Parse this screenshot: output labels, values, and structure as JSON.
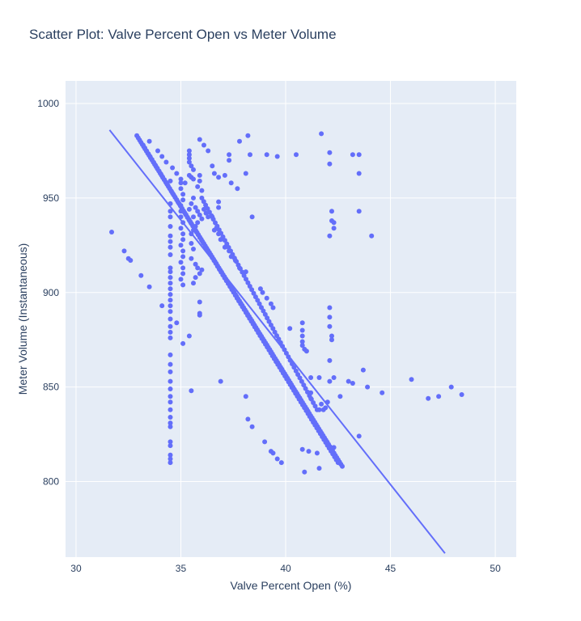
{
  "chart_data": {
    "type": "scatter",
    "title": "Scatter Plot: Valve Percent Open vs Meter Volume",
    "xlabel": "Valve Percent Open (%)",
    "ylabel": "Meter Volume (Instantaneous)",
    "xlim": [
      29.5,
      51
    ],
    "ylim": [
      760,
      1012
    ],
    "x_ticks": [
      30,
      35,
      40,
      45,
      50
    ],
    "y_ticks": [
      800,
      850,
      900,
      950,
      1000
    ],
    "grid": true,
    "colors": {
      "marker": "#636efa",
      "plot_bg": "#e5ecf6",
      "grid": "#ffffff",
      "text": "#2a3f5f"
    },
    "series": [
      {
        "mode": "markers",
        "points": [
          [
            31.7,
            932
          ],
          [
            32.3,
            922
          ],
          [
            32.5,
            918
          ],
          [
            32.6,
            917
          ],
          [
            33.1,
            909
          ],
          [
            33.5,
            903
          ],
          [
            34.1,
            893
          ],
          [
            34.8,
            884
          ],
          [
            35.4,
            877
          ],
          [
            35.1,
            873
          ],
          [
            35.5,
            848
          ],
          [
            36.9,
            853
          ],
          [
            33.5,
            980
          ],
          [
            33.9,
            975
          ],
          [
            34.1,
            972
          ],
          [
            34.3,
            969
          ],
          [
            34.6,
            966
          ],
          [
            34.8,
            963
          ],
          [
            35.0,
            960
          ],
          [
            35.2,
            958
          ],
          [
            35.4,
            975
          ],
          [
            35.4,
            973
          ],
          [
            35.4,
            971
          ],
          [
            35.4,
            969
          ],
          [
            35.5,
            967
          ],
          [
            35.6,
            965
          ],
          [
            35.4,
            962
          ],
          [
            35.5,
            961
          ],
          [
            35.6,
            960
          ],
          [
            35.9,
            981
          ],
          [
            36.1,
            978
          ],
          [
            36.3,
            975
          ],
          [
            36.5,
            967
          ],
          [
            36.6,
            963
          ],
          [
            36.8,
            961
          ],
          [
            37.1,
            962
          ],
          [
            37.3,
            973
          ],
          [
            37.3,
            970
          ],
          [
            37.4,
            958
          ],
          [
            37.7,
            955
          ],
          [
            37.8,
            980
          ],
          [
            38.1,
            963
          ],
          [
            38.2,
            983
          ],
          [
            38.3,
            973
          ],
          [
            39.1,
            973
          ],
          [
            39.6,
            972
          ],
          [
            40.5,
            973
          ],
          [
            41.7,
            984
          ],
          [
            35.9,
            962
          ],
          [
            35.9,
            959
          ],
          [
            36.0,
            954
          ],
          [
            35.8,
            956
          ],
          [
            35.6,
            950
          ],
          [
            35.5,
            947
          ],
          [
            35.4,
            944
          ],
          [
            35.6,
            940
          ],
          [
            35.7,
            945
          ],
          [
            35.8,
            943
          ],
          [
            35.9,
            941
          ],
          [
            36.0,
            939
          ],
          [
            36.1,
            944
          ],
          [
            36.2,
            942
          ],
          [
            36.3,
            940
          ],
          [
            35.8,
            937
          ],
          [
            35.7,
            935
          ],
          [
            35.6,
            933
          ],
          [
            35.5,
            931
          ],
          [
            35.5,
            926
          ],
          [
            35.6,
            923
          ],
          [
            35.5,
            918
          ],
          [
            35.7,
            915
          ],
          [
            35.8,
            913
          ],
          [
            35.9,
            910
          ],
          [
            36.0,
            912
          ],
          [
            35.6,
            905
          ],
          [
            35.7,
            908
          ],
          [
            35.9,
            895
          ],
          [
            35.9,
            889
          ],
          [
            35.9,
            888
          ],
          [
            36.8,
            948
          ],
          [
            36.8,
            945
          ],
          [
            36.5,
            940
          ],
          [
            36.6,
            933
          ],
          [
            36.7,
            934
          ],
          [
            36.8,
            931
          ],
          [
            36.9,
            928
          ],
          [
            37.1,
            924
          ],
          [
            37.3,
            922
          ],
          [
            37.4,
            919
          ],
          [
            37.6,
            917
          ],
          [
            37.8,
            913
          ],
          [
            38.1,
            911
          ],
          [
            38.4,
            940
          ],
          [
            38.8,
            902
          ],
          [
            38.9,
            900
          ],
          [
            39.1,
            897
          ],
          [
            39.3,
            894
          ],
          [
            39.4,
            892
          ],
          [
            35.0,
            958
          ],
          [
            35.0,
            955
          ],
          [
            35.1,
            952
          ],
          [
            35.1,
            949
          ],
          [
            35.0,
            946
          ],
          [
            35.0,
            943
          ],
          [
            35.0,
            940
          ],
          [
            35.1,
            937
          ],
          [
            35.0,
            934
          ],
          [
            35.1,
            931
          ],
          [
            35.1,
            928
          ],
          [
            35.0,
            925
          ],
          [
            35.1,
            922
          ],
          [
            35.1,
            919
          ],
          [
            35.0,
            916
          ],
          [
            35.1,
            913
          ],
          [
            35.1,
            910
          ],
          [
            35.0,
            907
          ],
          [
            35.1,
            904
          ],
          [
            34.5,
            959
          ],
          [
            34.5,
            947
          ],
          [
            34.5,
            943
          ],
          [
            34.5,
            940
          ],
          [
            34.5,
            935
          ],
          [
            34.5,
            930
          ],
          [
            34.5,
            927
          ],
          [
            34.5,
            924
          ],
          [
            34.5,
            920
          ],
          [
            34.5,
            913
          ],
          [
            34.5,
            911
          ],
          [
            34.5,
            908
          ],
          [
            34.5,
            905
          ],
          [
            34.5,
            902
          ],
          [
            34.5,
            899
          ],
          [
            34.5,
            896
          ],
          [
            34.5,
            893
          ],
          [
            34.5,
            890
          ],
          [
            34.5,
            886
          ],
          [
            34.5,
            882
          ],
          [
            34.5,
            879
          ],
          [
            34.5,
            876
          ],
          [
            34.5,
            867
          ],
          [
            34.5,
            862
          ],
          [
            34.5,
            858
          ],
          [
            34.5,
            853
          ],
          [
            34.5,
            849
          ],
          [
            34.5,
            845
          ],
          [
            34.5,
            842
          ],
          [
            34.5,
            838
          ],
          [
            34.5,
            834
          ],
          [
            34.5,
            831
          ],
          [
            34.5,
            829
          ],
          [
            34.5,
            821
          ],
          [
            34.5,
            819
          ],
          [
            34.5,
            814
          ],
          [
            34.5,
            812
          ],
          [
            34.5,
            810
          ],
          [
            40.2,
            881
          ],
          [
            40.8,
            884
          ],
          [
            40.8,
            880
          ],
          [
            40.8,
            877
          ],
          [
            40.8,
            874
          ],
          [
            40.8,
            872
          ],
          [
            40.9,
            870
          ],
          [
            41.0,
            869
          ],
          [
            42.1,
            974
          ],
          [
            42.1,
            968
          ],
          [
            42.2,
            943
          ],
          [
            42.2,
            938
          ],
          [
            42.3,
            937
          ],
          [
            42.3,
            934
          ],
          [
            42.1,
            930
          ],
          [
            43.2,
            973
          ],
          [
            43.5,
            973
          ],
          [
            43.5,
            963
          ],
          [
            43.5,
            943
          ],
          [
            44.1,
            930
          ],
          [
            42.1,
            892
          ],
          [
            42.1,
            887
          ],
          [
            42.1,
            882
          ],
          [
            42.2,
            877
          ],
          [
            42.2,
            875
          ],
          [
            42.1,
            864
          ],
          [
            42.1,
            853
          ],
          [
            42.3,
            855
          ],
          [
            42.6,
            845
          ],
          [
            43.0,
            853
          ],
          [
            43.2,
            852
          ],
          [
            43.7,
            859
          ],
          [
            43.9,
            850
          ],
          [
            44.6,
            847
          ],
          [
            46.0,
            854
          ],
          [
            46.8,
            844
          ],
          [
            47.3,
            845
          ],
          [
            47.9,
            850
          ],
          [
            48.4,
            846
          ],
          [
            41.2,
            855
          ],
          [
            41.2,
            847
          ],
          [
            41.2,
            844
          ],
          [
            41.6,
            855
          ],
          [
            41.7,
            841
          ],
          [
            41.6,
            838
          ],
          [
            41.8,
            838
          ],
          [
            41.9,
            839
          ],
          [
            42.0,
            842
          ],
          [
            38.1,
            845
          ],
          [
            38.2,
            833
          ],
          [
            38.4,
            829
          ],
          [
            39.0,
            821
          ],
          [
            39.3,
            816
          ],
          [
            39.4,
            815
          ],
          [
            39.6,
            812
          ],
          [
            39.8,
            810
          ],
          [
            40.8,
            817
          ],
          [
            40.9,
            805
          ],
          [
            41.1,
            816
          ],
          [
            41.5,
            815
          ],
          [
            41.6,
            807
          ],
          [
            43.5,
            824
          ],
          [
            42.3,
            818
          ]
        ],
        "dense_segments": [
          {
            "from": [
              32.9,
              983
            ],
            "to": [
              42.7,
              808
            ],
            "count": 150
          },
          {
            "from": [
              33.2,
              978
            ],
            "to": [
              42.5,
              810
            ],
            "count": 110
          },
          {
            "from": [
              36.0,
              950
            ],
            "to": [
              41.5,
              838
            ],
            "count": 60
          }
        ]
      },
      {
        "mode": "line",
        "points": [
          [
            31.6,
            986
          ],
          [
            47.6,
            762
          ]
        ]
      }
    ]
  }
}
